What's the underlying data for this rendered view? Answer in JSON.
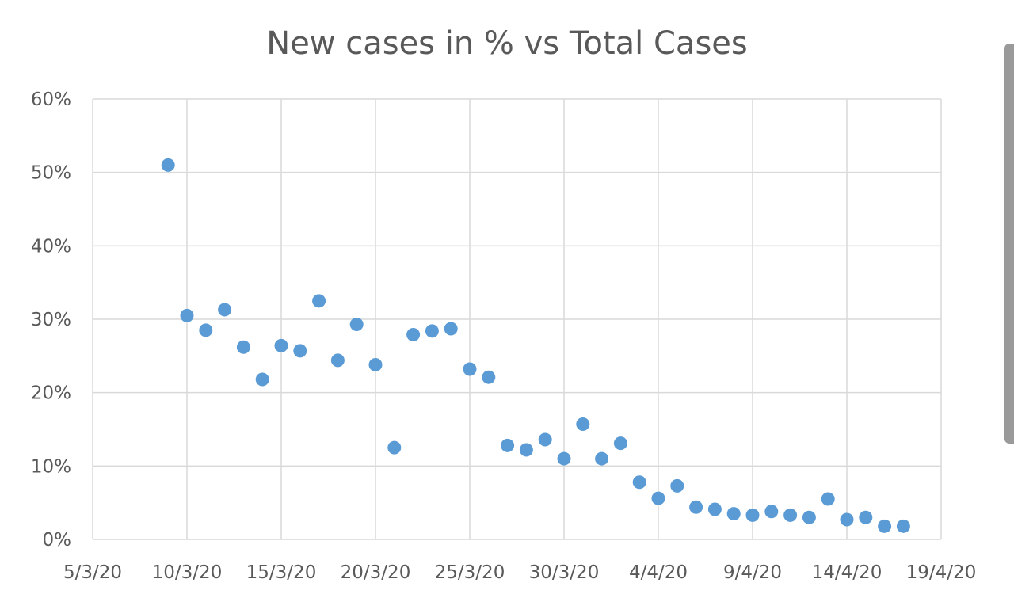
{
  "chart_data": {
    "type": "scatter",
    "title": "New cases in % vs Total Cases",
    "xlabel": "",
    "ylabel": "",
    "x_axis": {
      "type": "date",
      "min": "2020-03-05",
      "max": "2020-04-19",
      "tick_labels": [
        "5/3/20",
        "10/3/20",
        "15/3/20",
        "20/3/20",
        "25/3/20",
        "30/3/20",
        "4/4/20",
        "9/4/20",
        "14/4/20",
        "19/4/20"
      ]
    },
    "y_axis": {
      "min": 0,
      "max": 0.6,
      "tick_labels": [
        "0%",
        "10%",
        "20%",
        "30%",
        "40%",
        "50%",
        "60%"
      ]
    },
    "grid": true,
    "legend": "none",
    "marker_color": "#5b9bd5",
    "series": [
      {
        "points": [
          {
            "x": "2020-03-09",
            "y": 0.51
          },
          {
            "x": "2020-03-10",
            "y": 0.305
          },
          {
            "x": "2020-03-11",
            "y": 0.285
          },
          {
            "x": "2020-03-12",
            "y": 0.313
          },
          {
            "x": "2020-03-13",
            "y": 0.262
          },
          {
            "x": "2020-03-14",
            "y": 0.218
          },
          {
            "x": "2020-03-15",
            "y": 0.264
          },
          {
            "x": "2020-03-16",
            "y": 0.257
          },
          {
            "x": "2020-03-17",
            "y": 0.325
          },
          {
            "x": "2020-03-18",
            "y": 0.244
          },
          {
            "x": "2020-03-19",
            "y": 0.293
          },
          {
            "x": "2020-03-20",
            "y": 0.238
          },
          {
            "x": "2020-03-21",
            "y": 0.125
          },
          {
            "x": "2020-03-22",
            "y": 0.279
          },
          {
            "x": "2020-03-23",
            "y": 0.284
          },
          {
            "x": "2020-03-24",
            "y": 0.287
          },
          {
            "x": "2020-03-25",
            "y": 0.232
          },
          {
            "x": "2020-03-26",
            "y": 0.221
          },
          {
            "x": "2020-03-27",
            "y": 0.128
          },
          {
            "x": "2020-03-28",
            "y": 0.122
          },
          {
            "x": "2020-03-29",
            "y": 0.136
          },
          {
            "x": "2020-03-30",
            "y": 0.11
          },
          {
            "x": "2020-03-31",
            "y": 0.157
          },
          {
            "x": "2020-04-01",
            "y": 0.11
          },
          {
            "x": "2020-04-02",
            "y": 0.131
          },
          {
            "x": "2020-04-03",
            "y": 0.078
          },
          {
            "x": "2020-04-04",
            "y": 0.056
          },
          {
            "x": "2020-04-05",
            "y": 0.073
          },
          {
            "x": "2020-04-06",
            "y": 0.044
          },
          {
            "x": "2020-04-07",
            "y": 0.041
          },
          {
            "x": "2020-04-08",
            "y": 0.035
          },
          {
            "x": "2020-04-09",
            "y": 0.033
          },
          {
            "x": "2020-04-10",
            "y": 0.038
          },
          {
            "x": "2020-04-11",
            "y": 0.033
          },
          {
            "x": "2020-04-12",
            "y": 0.03
          },
          {
            "x": "2020-04-13",
            "y": 0.055
          },
          {
            "x": "2020-04-14",
            "y": 0.027
          },
          {
            "x": "2020-04-15",
            "y": 0.03
          },
          {
            "x": "2020-04-16",
            "y": 0.018
          },
          {
            "x": "2020-04-17",
            "y": 0.018
          }
        ]
      }
    ]
  }
}
